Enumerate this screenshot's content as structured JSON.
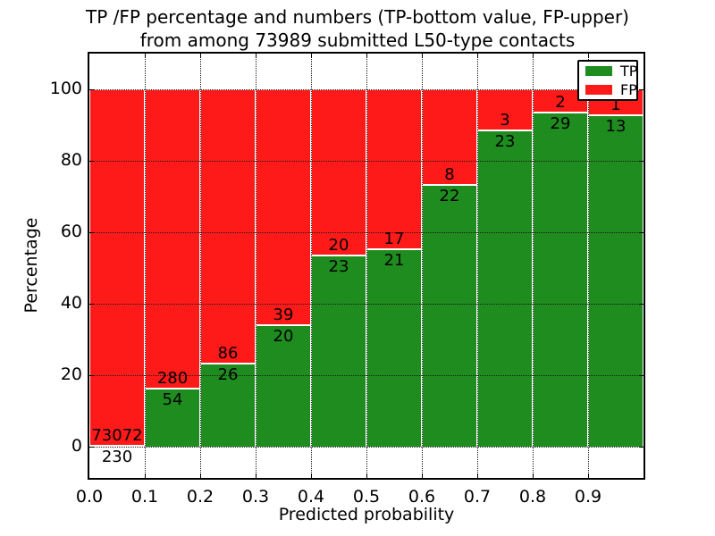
{
  "title": {
    "line1": "TP /FP percentage and numbers (TP-bottom value, FP-upper)",
    "line2": "from among 73989 submitted L50-type contacts"
  },
  "y_axis": {
    "label": "Percentage",
    "ticks": [
      0,
      20,
      40,
      60,
      80,
      100
    ]
  },
  "x_axis": {
    "label": "Predicted probability",
    "ticks": [
      "0.0",
      "0.1",
      "0.2",
      "0.3",
      "0.4",
      "0.5",
      "0.6",
      "0.7",
      "0.8",
      "0.9"
    ]
  },
  "legend": {
    "items": [
      {
        "label": "TP",
        "color": "#1f8c1f"
      },
      {
        "label": "FP",
        "color": "#ff1a1a"
      }
    ]
  },
  "colors": {
    "tp": "#1f8c1f",
    "fp": "#ff1a1a",
    "grid": "#1a1a1a",
    "bar_edge": "#ffffff"
  },
  "chart_data": {
    "type": "bar",
    "stacked": true,
    "normalized": "each bin scaled to 100%; numeric labels show raw counts (TP bottom, FP upper)",
    "title": "TP /FP percentage and numbers (TP-bottom value, FP-upper) from among 73989 submitted L50-type contacts",
    "xlabel": "Predicted probability",
    "ylabel": "Percentage",
    "bins": [
      "0.0-0.1",
      "0.1-0.2",
      "0.2-0.3",
      "0.3-0.4",
      "0.4-0.5",
      "0.5-0.6",
      "0.6-0.7",
      "0.7-0.8",
      "0.8-0.9",
      "0.9-1.0"
    ],
    "series": [
      {
        "name": "TP",
        "color": "#1f8c1f",
        "values": [
          230,
          54,
          26,
          20,
          23,
          21,
          22,
          23,
          29,
          13
        ]
      },
      {
        "name": "FP",
        "color": "#ff1a1a",
        "values": [
          73072,
          280,
          86,
          39,
          20,
          17,
          8,
          3,
          2,
          1
        ]
      }
    ],
    "tp_percent": [
      0.31,
      16.17,
      23.21,
      33.9,
      53.49,
      55.26,
      73.33,
      88.46,
      93.55,
      92.86
    ],
    "total_submitted": 73989,
    "ylim": [
      0,
      100
    ],
    "yticks": [
      0,
      20,
      40,
      60,
      80,
      100
    ],
    "grid": "dotted",
    "legend_position": "upper right"
  }
}
